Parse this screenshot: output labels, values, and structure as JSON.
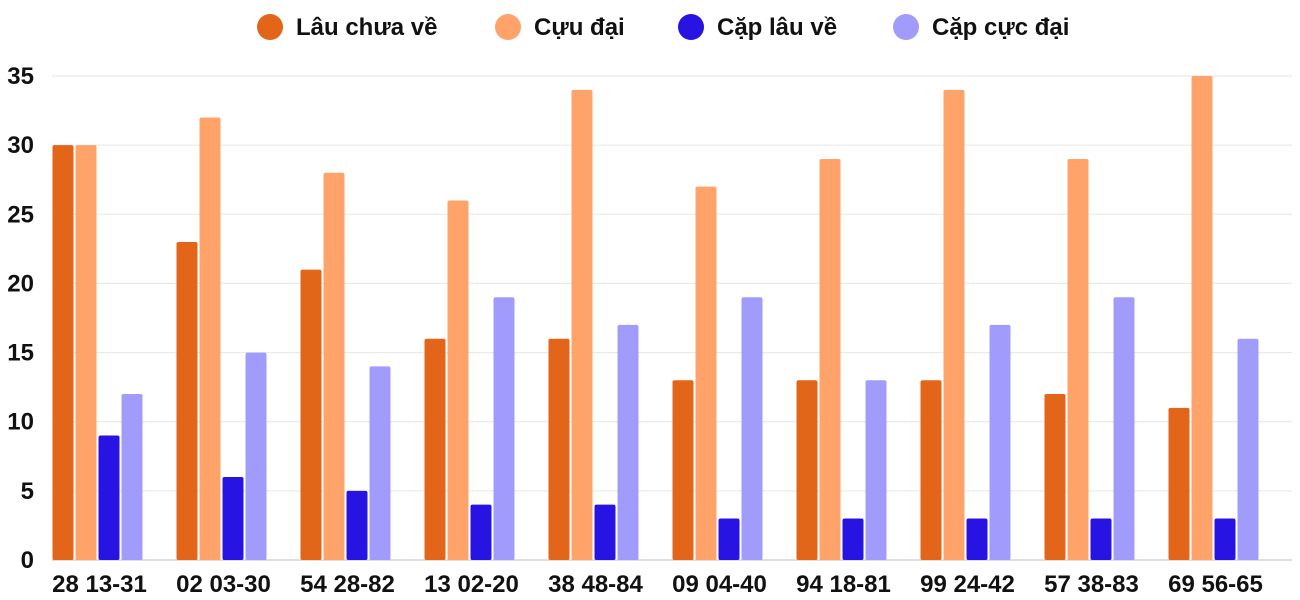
{
  "chart_data": {
    "type": "bar",
    "title": "",
    "xlabel": "",
    "ylabel": "",
    "ylim": [
      0,
      35
    ],
    "yticks": [
      0,
      5,
      10,
      15,
      20,
      25,
      30,
      35
    ],
    "grid": true,
    "legend_position": "top-center",
    "categories": [
      "28 13-31",
      "02 03-30",
      "54 28-82",
      "13 02-20",
      "38 48-84",
      "09 04-40",
      "94 18-81",
      "99 24-42",
      "57 38-83",
      "69 56-65"
    ],
    "series": [
      {
        "name": "Lâu chưa về",
        "color": "#e2651a",
        "values": [
          30,
          23,
          21,
          16,
          16,
          13,
          13,
          13,
          12,
          11
        ]
      },
      {
        "name": "Cựu đại",
        "color": "#ffa36b",
        "values": [
          30,
          32,
          28,
          26,
          34,
          27,
          29,
          34,
          29,
          35
        ]
      },
      {
        "name": "Cặp lâu về",
        "color": "#2713e2",
        "values": [
          9,
          6,
          5,
          4,
          4,
          3,
          3,
          3,
          3,
          3
        ]
      },
      {
        "name": "Cặp cực đại",
        "color": "#a19cfb",
        "values": [
          12,
          15,
          14,
          19,
          17,
          19,
          13,
          17,
          19,
          16
        ]
      }
    ]
  }
}
